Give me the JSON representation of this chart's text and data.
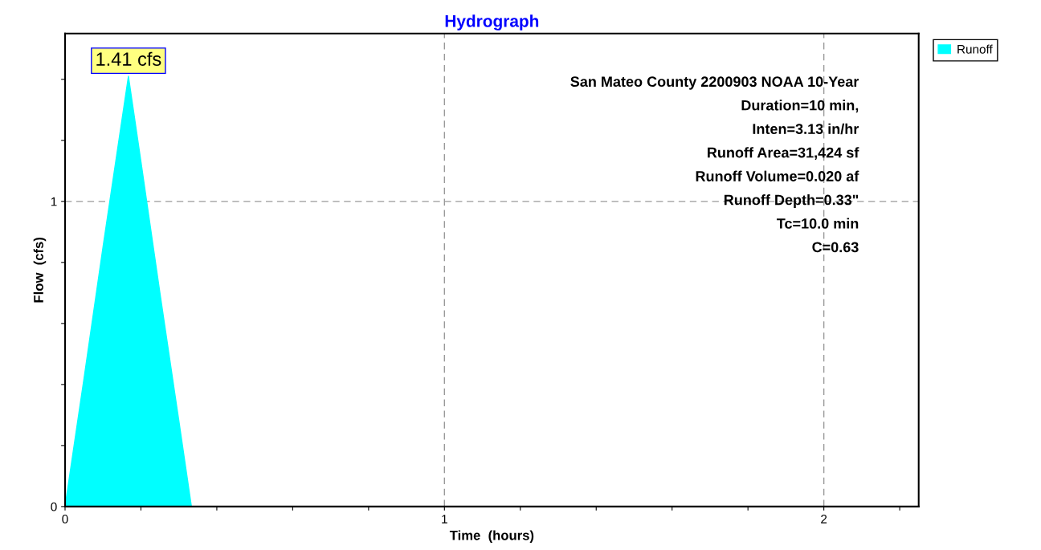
{
  "chart_data": {
    "type": "area",
    "title": "Hydrograph",
    "xlabel": "Time  (hours)",
    "ylabel": "Flow  (cfs)",
    "x": [
      0,
      0.05,
      0.1,
      0.167,
      0.2,
      0.25,
      0.3,
      0.333,
      2.2
    ],
    "series": [
      {
        "name": "Runoff",
        "color": "#00ffff",
        "values": [
          0,
          0.42,
          0.85,
          1.41,
          1.13,
          0.7,
          0.28,
          0,
          0
        ]
      }
    ],
    "xlim": [
      0,
      2.25
    ],
    "ylim": [
      0,
      1.55
    ],
    "xticks": [
      0,
      {
        "value": 0.2,
        "label": null
      },
      {
        "value": 0.4,
        "label": null
      },
      {
        "value": 0.6,
        "label": null
      },
      {
        "value": 0.8,
        "label": null
      },
      1,
      {
        "value": 1.2,
        "label": null
      },
      {
        "value": 1.4,
        "label": null
      },
      {
        "value": 1.6,
        "label": null
      },
      {
        "value": 1.8,
        "label": null
      },
      2,
      {
        "value": 2.2,
        "label": null
      }
    ],
    "yticks": [
      0,
      {
        "value": 0.2,
        "label": null
      },
      {
        "value": 0.4,
        "label": null
      },
      {
        "value": 0.6,
        "label": null
      },
      {
        "value": 0.8,
        "label": null
      },
      1,
      {
        "value": 1.2,
        "label": null
      },
      {
        "value": 1.4,
        "label": null
      }
    ],
    "grid": true,
    "legend": "top right",
    "annotations": [
      {
        "text": "1.41 cfs",
        "x": 0.167,
        "y": 1.41
      },
      "San Mateo County 2200903 NOAA 10-Year",
      "Duration=10 min,",
      "Inten=3.13 in/hr",
      "Runoff Area=31,424 sf",
      "Runoff Volume=0.020 af",
      "Runoff Depth=0.33\"",
      "Tc=10.0 min",
      "C=0.63"
    ]
  }
}
